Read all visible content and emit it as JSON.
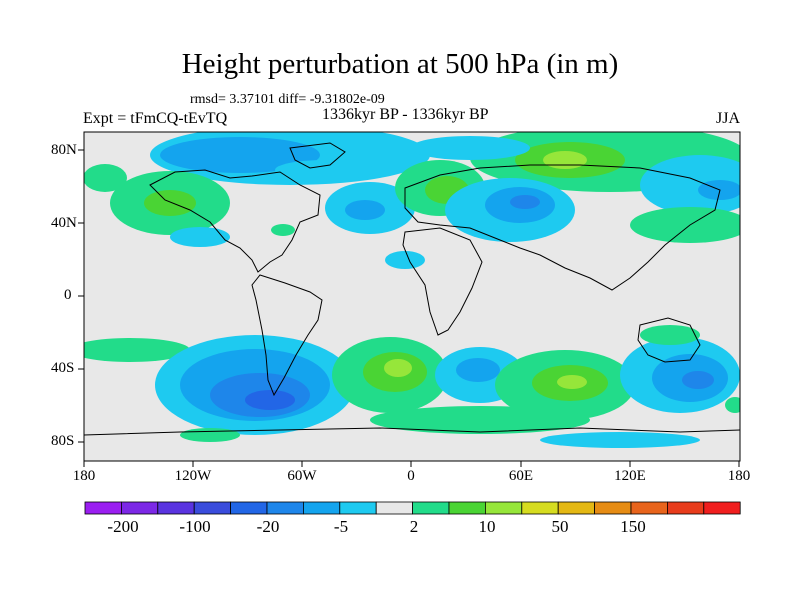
{
  "title": "Height perturbation at 500 hPa (in m)",
  "stats": "rmsd= 3.37101 diff= -9.31802e-09",
  "left_label": "Expt = tFmCQ-tEvTQ",
  "center_label": "1336kyr BP - 1336kyr BP",
  "right_label": "JJA",
  "lat_labels": [
    "80N",
    "40N",
    "0",
    "40S",
    "80S"
  ],
  "lon_labels": [
    "180",
    "120W",
    "60W",
    "0",
    "60E",
    "120E",
    "180"
  ],
  "colorbar": {
    "colors": [
      "#9a1ef0",
      "#7c28e6",
      "#5a34e0",
      "#3a4cdc",
      "#2266e6",
      "#1e86ea",
      "#14a4ee",
      "#1ecaf0",
      "#e8e8e8",
      "#22dc8a",
      "#4ad434",
      "#96e63a",
      "#d6dc20",
      "#e4b814",
      "#e68c14",
      "#e8641c",
      "#e83c1c",
      "#f01e1e"
    ],
    "labels": [
      "-200",
      "-100",
      "-20",
      "-5",
      "2",
      "10",
      "50",
      "150"
    ]
  },
  "palette": {
    "background": "#e8e8e8",
    "c_blue": "#2266e6",
    "c_midblue": "#1e86ea",
    "c_lightblue": "#14a4ee",
    "c_cyan": "#1ecaf0",
    "c_green": "#22dc8a",
    "c_lime": "#4ad434",
    "c_yellowgreen": "#96e63a",
    "c_yellow": "#d6dc20"
  }
}
